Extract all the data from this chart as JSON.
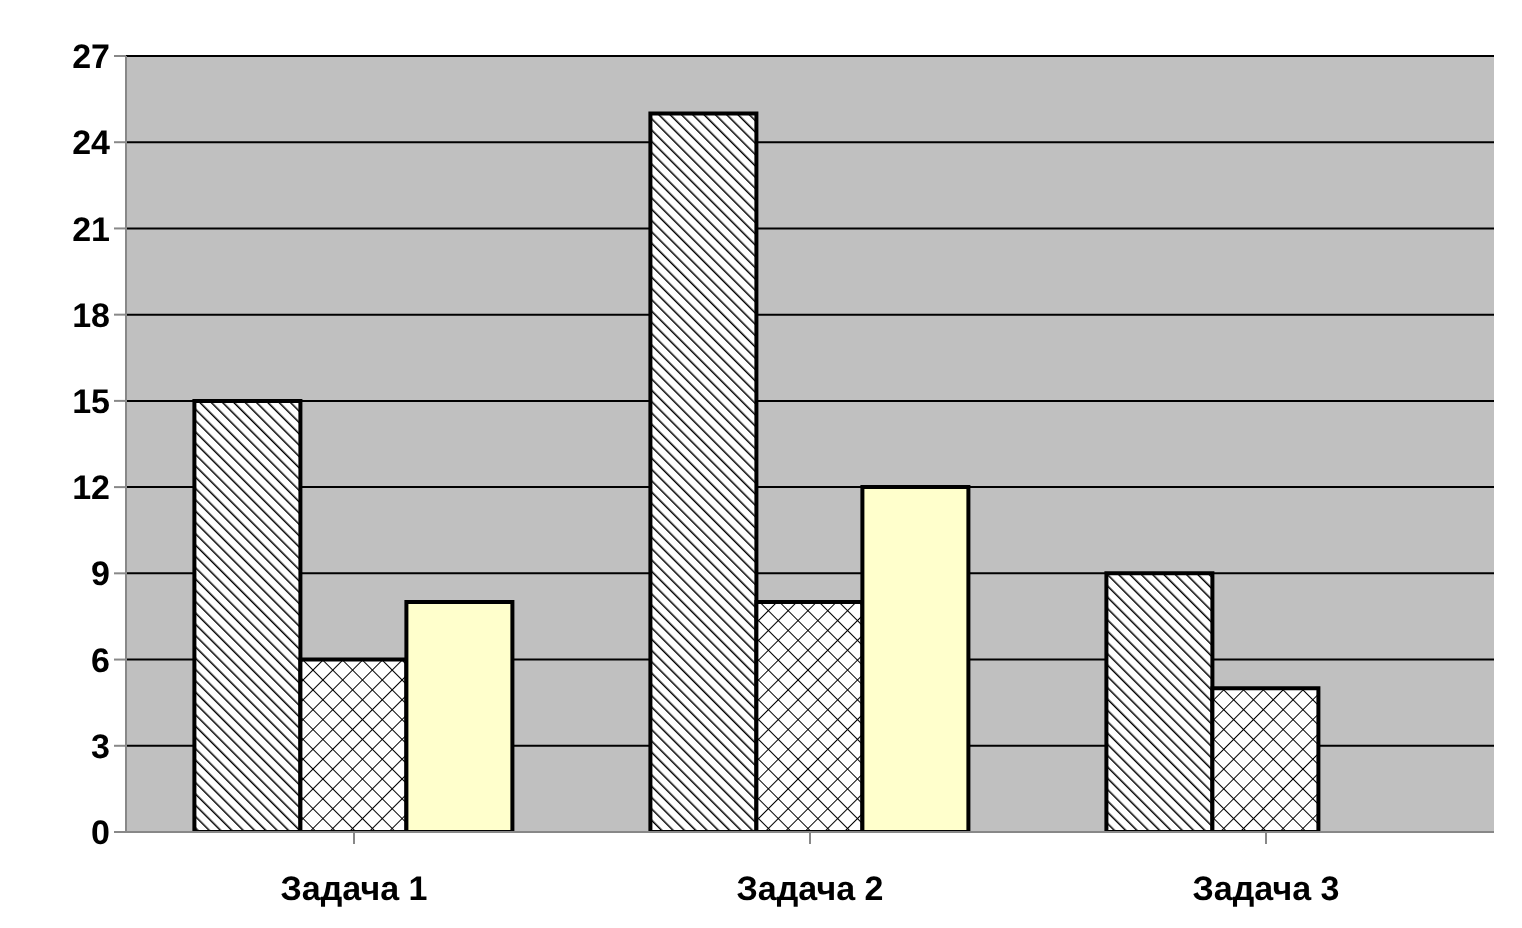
{
  "chart_data": {
    "type": "bar",
    "categories": [
      "Задача 1",
      "Задача 2",
      "Задача 3"
    ],
    "series": [
      {
        "color": "#000000",
        "values": [
          15,
          25,
          9
        ]
      },
      {
        "color": "#000000",
        "values": [
          6,
          8,
          5
        ]
      },
      {
        "color": "#ffffcc",
        "values": [
          8,
          12,
          null
        ]
      }
    ],
    "ylim": [
      0,
      27
    ],
    "yticks": [
      0,
      3,
      6,
      9,
      12,
      15,
      18,
      21,
      24,
      27
    ],
    "grid": "y",
    "legend": false
  }
}
